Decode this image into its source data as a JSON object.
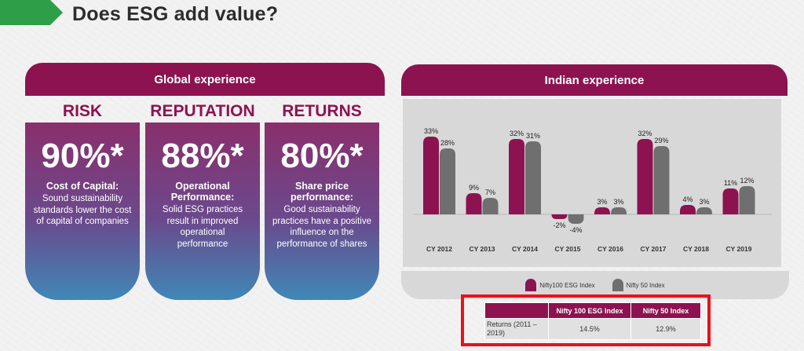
{
  "title": "Does ESG add value?",
  "global": {
    "header": "Global experience",
    "cards": [
      {
        "heading": "RISK",
        "value": "90%*",
        "label": "Cost of Capital:",
        "description": "Sound sustainability standards lower the cost of capital of companies"
      },
      {
        "heading": "REPUTATION",
        "value": "88%*",
        "label": "Operational Performance:",
        "description": "Solid ESG practices result in improved operational performance"
      },
      {
        "heading": "RETURNS",
        "value": "80%*",
        "label": "Share price performance:",
        "description": "Good sustainability practices have a positive influence on the performance of shares"
      }
    ]
  },
  "indian": {
    "header": "Indian experience",
    "legend": [
      "Nifty100 ESG Index",
      "Nifty 50 Index"
    ]
  },
  "colors": {
    "brand": "#8c1350",
    "esg": "#8c1350",
    "nifty": "#6f6f6f",
    "accent_green": "#2e9e48",
    "highlight_red": "#e8121b"
  },
  "chart_data": {
    "type": "bar",
    "categories": [
      "CY 2012",
      "CY 2013",
      "CY 2014",
      "CY 2015",
      "CY 2016",
      "CY 2017",
      "CY 2018",
      "CY 2019"
    ],
    "series": [
      {
        "name": "Nifty100 ESG Index",
        "values": [
          33,
          9,
          32,
          -2,
          3,
          32,
          4,
          11
        ],
        "labels": [
          "33%",
          "9%",
          "32%",
          "-2%",
          "3%",
          "32%",
          "4%",
          "11%"
        ]
      },
      {
        "name": "Nifty 50 Index",
        "values": [
          28,
          7,
          31,
          -4,
          3,
          29,
          3,
          12
        ],
        "labels": [
          "28%",
          "7%",
          "31%",
          "-4%",
          "3%",
          "29%",
          "3%",
          "12%"
        ]
      }
    ],
    "ylim": [
      -6,
      36
    ],
    "legend_position": "bottom"
  },
  "table": {
    "headers": [
      "",
      "Nifty 100 ESG Index",
      "Nifty 50 Index"
    ],
    "row_label": "Returns (2011 – 2019)",
    "values": [
      "14.5%",
      "12.9%"
    ]
  }
}
